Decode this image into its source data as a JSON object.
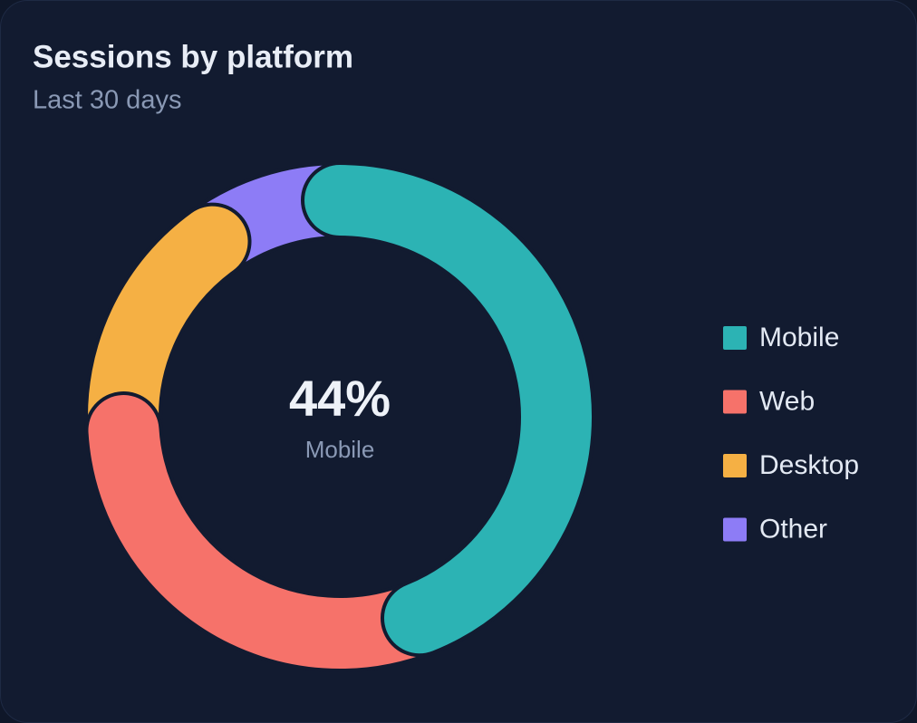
{
  "chart_data": {
    "type": "donut",
    "title": "Sessions by platform",
    "subtitle": "Last 30 days",
    "categories": [
      "Mobile",
      "Web",
      "Desktop",
      "Other"
    ],
    "values": [
      44,
      30,
      16,
      10
    ],
    "colors": [
      "#2cb3b4",
      "#f6726a",
      "#f5b044",
      "#8d7cf6"
    ],
    "center_label": "44%"
  }
}
